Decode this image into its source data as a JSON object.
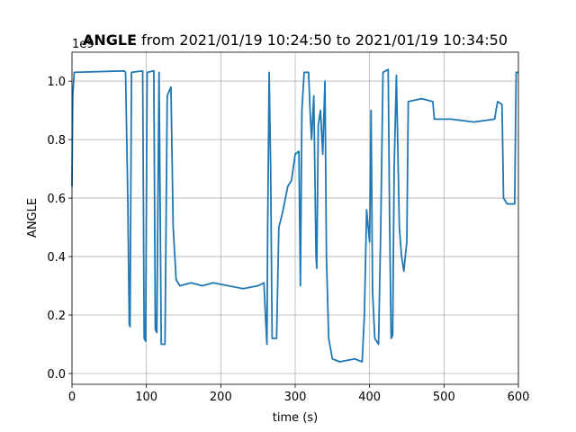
{
  "chart_data": {
    "type": "line",
    "title_bold": "ANGLE",
    "title": "from 2021/01/19 10:24:50 to 2021/01/19 10:34:50",
    "x_label": "time (s)",
    "y_label": "ANGLE",
    "y_offset_label": "1e9",
    "x": [
      0,
      1,
      3,
      70,
      72,
      75,
      77,
      78,
      80,
      95,
      97,
      99,
      101,
      110,
      112,
      114,
      117,
      120,
      125,
      128,
      133,
      136,
      140,
      145,
      160,
      175,
      190,
      210,
      230,
      250,
      258,
      260,
      262,
      263,
      265,
      267,
      269,
      275,
      278,
      283,
      290,
      295,
      300,
      305,
      307,
      309,
      312,
      318,
      320,
      322,
      325,
      328,
      329,
      331,
      334,
      337,
      340,
      342,
      345,
      350,
      360,
      380,
      390,
      393,
      396,
      400,
      402,
      404,
      407,
      412,
      415,
      418,
      425,
      427,
      429,
      431,
      433,
      436,
      440,
      443,
      446,
      450,
      452,
      470,
      485,
      487,
      510,
      540,
      568,
      572,
      578,
      580,
      585,
      595,
      597,
      600
    ],
    "series": [
      {
        "name": "ANGLE",
        "color": "#1f77b4",
        "values": [
          0.64,
          0.95,
          1.03,
          1.035,
          1.03,
          0.6,
          0.17,
          0.16,
          1.03,
          1.035,
          0.12,
          0.11,
          1.03,
          1.035,
          0.15,
          0.14,
          1.03,
          0.1,
          0.1,
          0.95,
          0.98,
          0.5,
          0.32,
          0.3,
          0.31,
          0.3,
          0.31,
          0.3,
          0.29,
          0.3,
          0.31,
          0.2,
          0.1,
          0.5,
          1.03,
          0.7,
          0.12,
          0.12,
          0.5,
          0.55,
          0.64,
          0.66,
          0.75,
          0.76,
          0.3,
          0.9,
          1.03,
          1.03,
          0.9,
          0.8,
          0.95,
          0.4,
          0.36,
          0.85,
          0.9,
          0.75,
          1.0,
          0.4,
          0.12,
          0.05,
          0.04,
          0.05,
          0.04,
          0.2,
          0.56,
          0.45,
          0.9,
          0.28,
          0.12,
          0.1,
          0.5,
          1.03,
          1.04,
          0.5,
          0.12,
          0.13,
          0.7,
          1.02,
          0.5,
          0.4,
          0.35,
          0.45,
          0.93,
          0.94,
          0.93,
          0.87,
          0.87,
          0.86,
          0.87,
          0.93,
          0.92,
          0.6,
          0.58,
          0.58,
          1.03,
          1.03
        ]
      }
    ],
    "xlim": [
      0,
      600
    ],
    "xticks": [
      0,
      100,
      200,
      300,
      400,
      500,
      600
    ],
    "ylim": [
      -0.037,
      1.099
    ],
    "yticks": [
      {
        "value": 0,
        "label": "0.0"
      },
      0.2,
      0.4,
      0.6,
      0.8,
      {
        "value": 1,
        "label": "1.0"
      }
    ],
    "grid": true
  }
}
